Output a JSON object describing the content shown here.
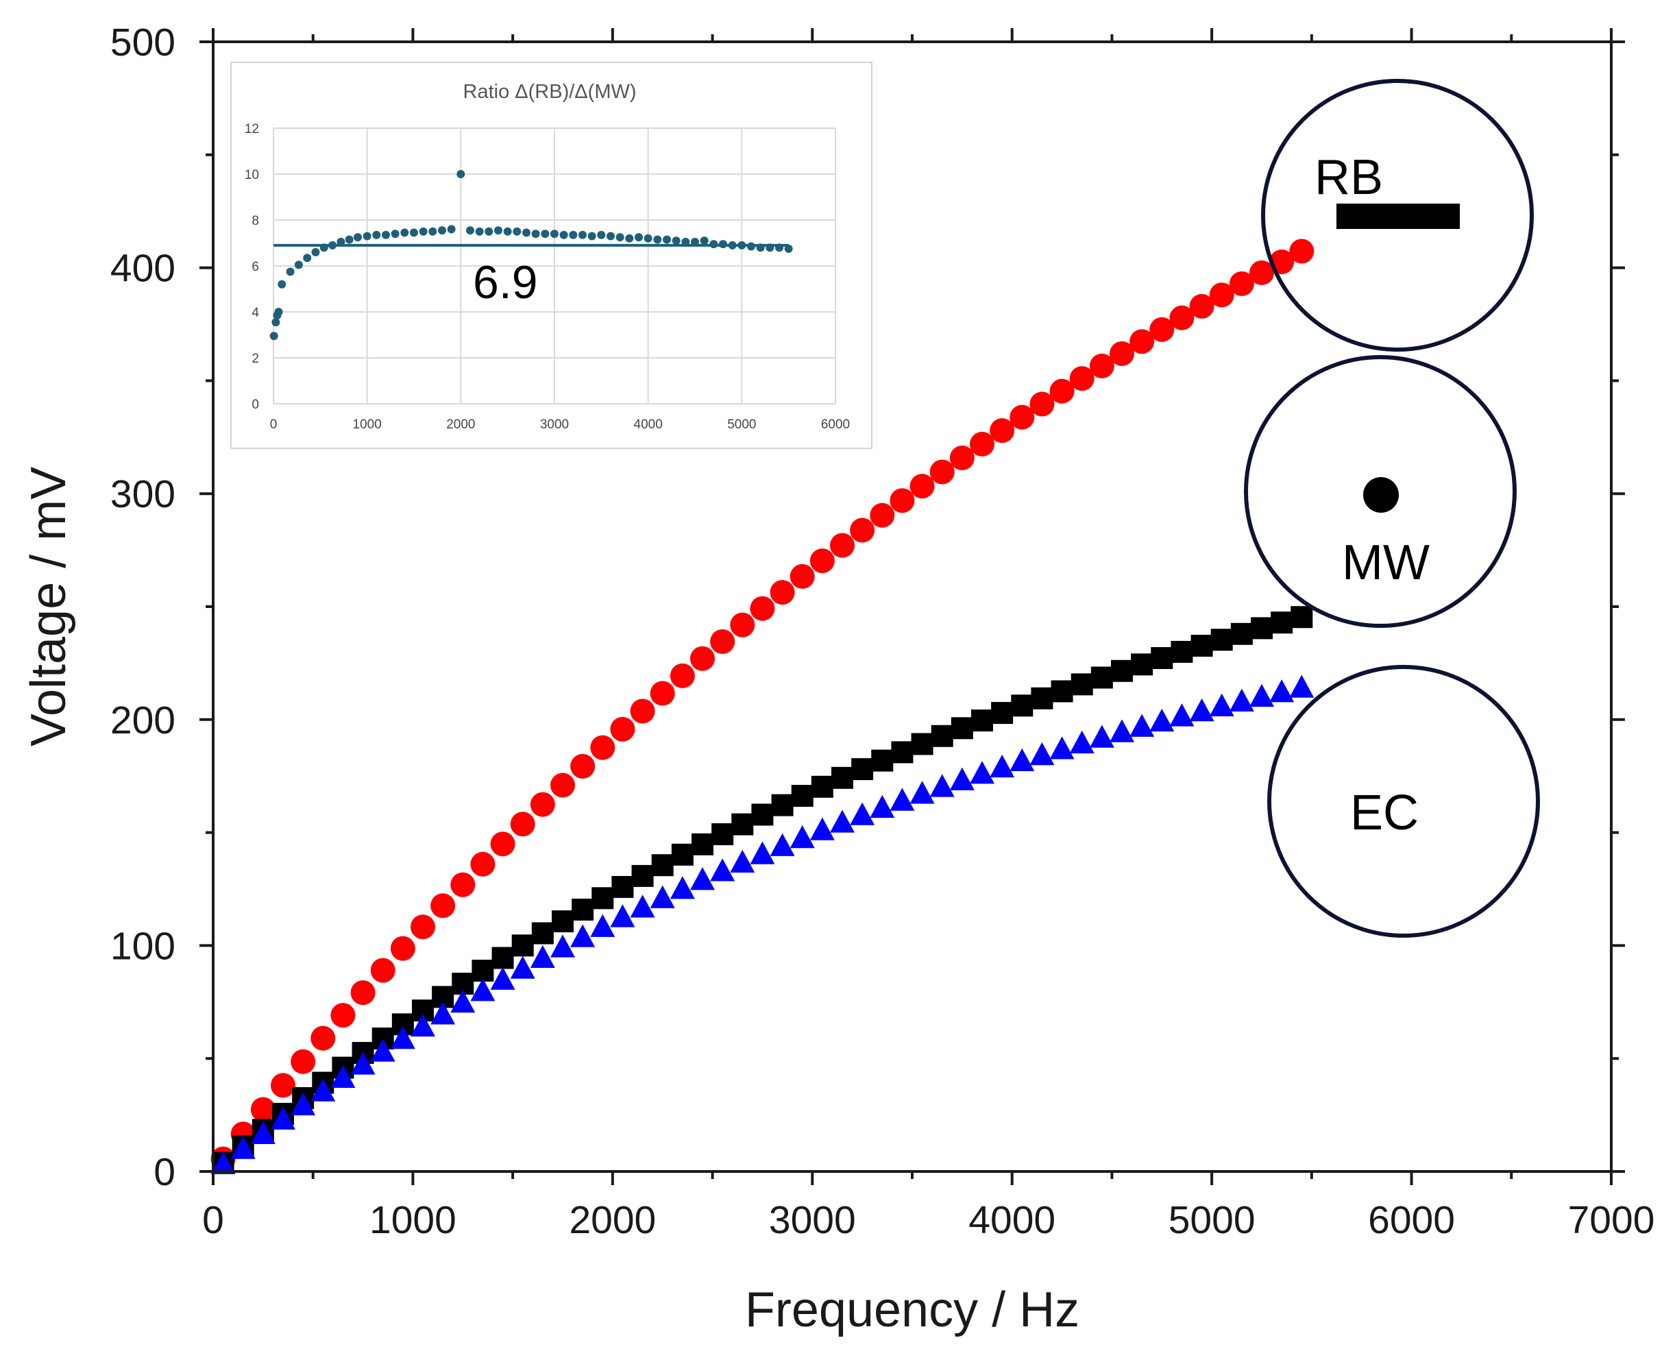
{
  "chart_data": [
    {
      "type": "scatter",
      "xlabel": "Frequency / Hz",
      "ylabel": "Voltage / mV",
      "xlim": [
        0,
        7000
      ],
      "ylim": [
        0,
        500
      ],
      "xticks": [
        0,
        1000,
        2000,
        3000,
        4000,
        5000,
        6000,
        7000
      ],
      "yticks": [
        0,
        100,
        200,
        300,
        400,
        500
      ],
      "grid": false,
      "series": [
        {
          "name": "RB",
          "marker": "circle",
          "color": "#ff0000",
          "x_start": 50,
          "x_end": 5500,
          "x_step": 100,
          "model": {
            "type": "saturating",
            "vmax": 700,
            "k": 0.00016
          }
        },
        {
          "name": "MW",
          "marker": "square",
          "color": "#000000",
          "x_start": 50,
          "x_end": 5500,
          "x_step": 100,
          "model": {
            "type": "saturating",
            "vmax": 360,
            "k": 0.00021
          }
        },
        {
          "name": "EC",
          "marker": "triangle",
          "color": "#0000ff",
          "x_start": 50,
          "x_end": 5500,
          "x_step": 100,
          "model": {
            "type": "saturating",
            "vmax": 300,
            "k": 0.00023
          }
        }
      ]
    },
    {
      "type": "scatter",
      "title": "Ratio Δ(RB)/Δ(MW)",
      "xlim": [
        0,
        6000
      ],
      "ylim": [
        0,
        12
      ],
      "xticks": [
        0,
        1000,
        2000,
        3000,
        4000,
        5000,
        6000
      ],
      "yticks": [
        0,
        2,
        4,
        6,
        8,
        10,
        12
      ],
      "grid": true,
      "reference_line": {
        "value": 6.9,
        "x_from": 0,
        "x_to": 5500,
        "label": "6.9"
      },
      "series": [
        {
          "name": "Ratio",
          "color": "#1f5f7a",
          "x": [
            5,
            25,
            40,
            55,
            90,
            180,
            270,
            360,
            450,
            540,
            630,
            720,
            810,
            900,
            1000,
            1100,
            1200,
            1300,
            1400,
            1500,
            1600,
            1700,
            1800,
            1900,
            2000,
            2100,
            2200,
            2300,
            2400,
            2500,
            2600,
            2700,
            2800,
            2900,
            3000,
            3100,
            3200,
            3300,
            3400,
            3500,
            3600,
            3700,
            3800,
            3900,
            4000,
            4100,
            4200,
            4300,
            4400,
            4500,
            4600,
            4700,
            4800,
            4900,
            5000,
            5100,
            5200,
            5300,
            5400,
            5500
          ],
          "y": [
            2.95,
            3.55,
            3.85,
            4.0,
            5.2,
            5.75,
            6.05,
            6.35,
            6.6,
            6.8,
            6.9,
            7.05,
            7.15,
            7.25,
            7.3,
            7.35,
            7.35,
            7.4,
            7.45,
            7.45,
            7.5,
            7.5,
            7.55,
            7.6,
            10.0,
            7.55,
            7.5,
            7.5,
            7.55,
            7.5,
            7.5,
            7.45,
            7.4,
            7.4,
            7.4,
            7.35,
            7.35,
            7.35,
            7.3,
            7.35,
            7.3,
            7.25,
            7.2,
            7.25,
            7.2,
            7.15,
            7.15,
            7.1,
            7.05,
            7.05,
            7.1,
            6.95,
            6.95,
            6.9,
            6.9,
            6.85,
            6.8,
            6.8,
            6.8,
            6.75
          ]
        }
      ]
    }
  ],
  "diagrams": {
    "rb": {
      "label": "RB"
    },
    "mw": {
      "label": "MW"
    },
    "ec": {
      "label": "EC"
    }
  }
}
